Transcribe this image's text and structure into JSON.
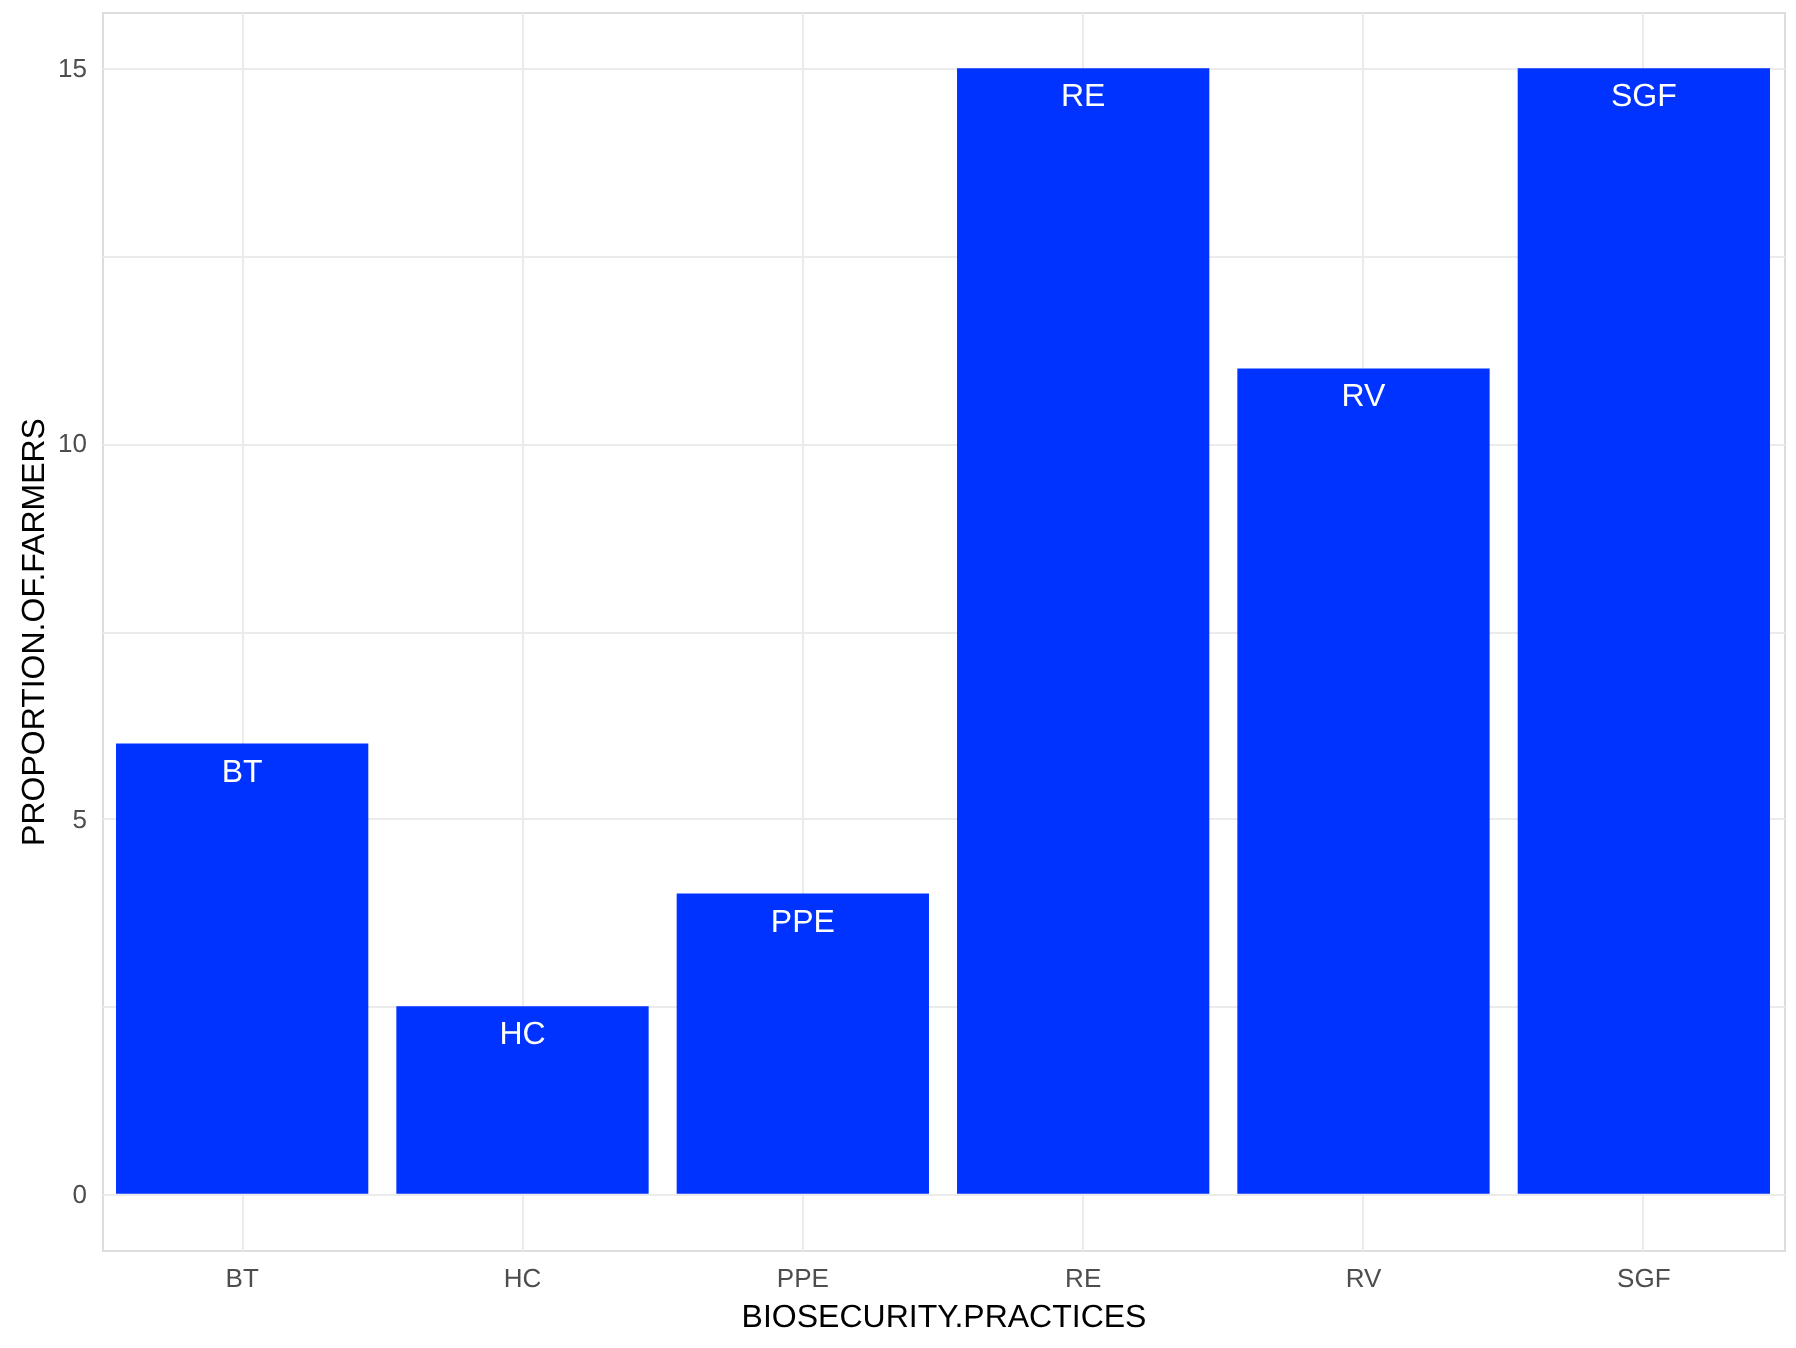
{
  "chart_data": {
    "type": "bar",
    "xlabel": "BIOSECURITY.PRACTICES",
    "ylabel": "PROPORTION.OF.FARMERS",
    "categories": [
      "BT",
      "HC",
      "PPE",
      "RE",
      "RV",
      "SGF"
    ],
    "values": [
      6,
      2.5,
      4,
      15,
      11,
      15
    ],
    "color": "#0033ff",
    "ylim": [
      -0.75,
      15.75
    ],
    "yticks": [
      0,
      {
        "value": 2.5,
        "label": null
      },
      5,
      {
        "value": 7.5,
        "label": null
      },
      10,
      {
        "value": 12.5,
        "label": null
      },
      15
    ],
    "grid": true,
    "annotations": [
      {
        "text": "BT",
        "x": "BT",
        "y": 6
      },
      {
        "text": "HC",
        "x": "HC",
        "y": 2.5
      },
      {
        "text": "PPE",
        "x": "PPE",
        "y": 4
      },
      {
        "text": "RE",
        "x": "RE",
        "y": 15
      },
      {
        "text": "RV",
        "x": "RV",
        "y": 11
      },
      {
        "text": "SGF",
        "x": "SGF",
        "y": 15
      }
    ]
  }
}
